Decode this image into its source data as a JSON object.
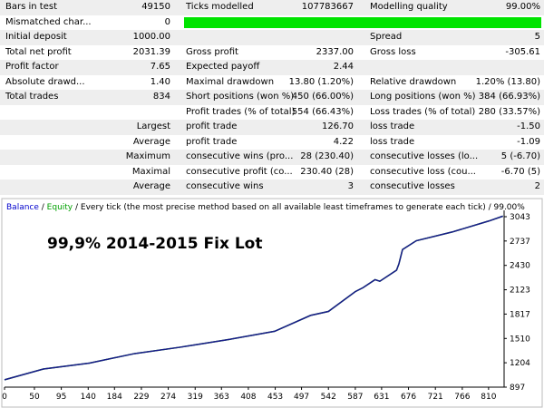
{
  "table": {
    "rows": [
      {
        "label1": "Bars in test",
        "value1": "49150",
        "label2": "Ticks modelled",
        "value2": "107783667",
        "label3": "Modelling quality",
        "value3": "99.00%"
      },
      {
        "label1": "Mismatched char...",
        "value1": "0"
      },
      {
        "label1": "Initial deposit",
        "value1": "1000.00",
        "label3": "Spread",
        "value3": "5"
      },
      {
        "label1": "Total net profit",
        "value1": "2031.39",
        "label2": "Gross profit",
        "value2": "2337.00",
        "label3": "Gross loss",
        "value3": "-305.61"
      },
      {
        "label1": "Profit factor",
        "value1": "7.65",
        "label2": "Expected payoff",
        "value2": "2.44"
      },
      {
        "label1": "Absolute drawd...",
        "value1": "1.40",
        "label2": "Maximal drawdown",
        "value2": "13.80 (1.20%)",
        "label3": "Relative drawdown",
        "value3": "1.20% (13.80)"
      },
      {
        "label1": "Total trades",
        "value1": "834",
        "label2": "Short positions (won %)",
        "value2": "450 (66.00%)",
        "label3": "Long positions (won %)",
        "value3": "384 (66.93%)"
      },
      {
        "label2": "Profit trades (% of total)",
        "value2": "554 (66.43%)",
        "label3": "Loss trades (% of total)",
        "value3": "280 (33.57%)"
      },
      {
        "group": "Largest",
        "label2": "profit trade",
        "value2": "126.70",
        "label3": "loss trade",
        "value3": "-1.50"
      },
      {
        "group": "Average",
        "label2": "profit trade",
        "value2": "4.22",
        "label3": "loss trade",
        "value3": "-1.09"
      },
      {
        "group": "Maximum",
        "label2": "consecutive wins (pro...",
        "value2": "28 (230.40)",
        "label3": "consecutive losses (lo...",
        "value3": "5 (-6.70)"
      },
      {
        "group": "Maximal",
        "label2": "consecutive profit (co...",
        "value2": "230.40 (28)",
        "label3": "consecutive loss (cou...",
        "value3": "-6.70 (5)"
      },
      {
        "group": "Average",
        "label2": "consecutive wins",
        "value2": "3",
        "label3": "consecutive losses",
        "value3": "2"
      }
    ],
    "quality_bar_color": "#00e400"
  },
  "chart_data": {
    "type": "line",
    "legend_separator": "/",
    "legend_suffix": "/ Every tick (the most precise method based on all available least timeframes to generate each tick) / 99.00%",
    "annotation": "99,9% 2014-2015 Fix Lot",
    "x": [
      0,
      65,
      142,
      218,
      294,
      370,
      452,
      512,
      542,
      587,
      600,
      620,
      628,
      656,
      660,
      666,
      689,
      749,
      811,
      834
    ],
    "series": [
      {
        "name": "Equity",
        "color": "#00a000",
        "values": [
          990,
          1125,
          1200,
          1320,
          1400,
          1490,
          1600,
          1800,
          1850,
          2100,
          2150,
          2250,
          2230,
          2370,
          2450,
          2630,
          2740,
          2850,
          2990,
          3050
        ]
      },
      {
        "name": "Balance",
        "color": "#1a1a8c",
        "values": [
          990,
          1125,
          1200,
          1320,
          1400,
          1490,
          1600,
          1800,
          1850,
          2100,
          2150,
          2250,
          2230,
          2370,
          2450,
          2630,
          2740,
          2850,
          2990,
          3050
        ]
      }
    ],
    "xlim": [
      0,
      836
    ],
    "xticks": [
      0,
      50,
      95,
      140,
      184,
      229,
      274,
      319,
      363,
      408,
      453,
      497,
      542,
      587,
      631,
      676,
      721,
      766,
      810
    ],
    "ylim": [
      897,
      3123
    ],
    "yticks": [
      897,
      1204,
      1510,
      1817,
      2123,
      2430,
      2737,
      3043
    ]
  }
}
